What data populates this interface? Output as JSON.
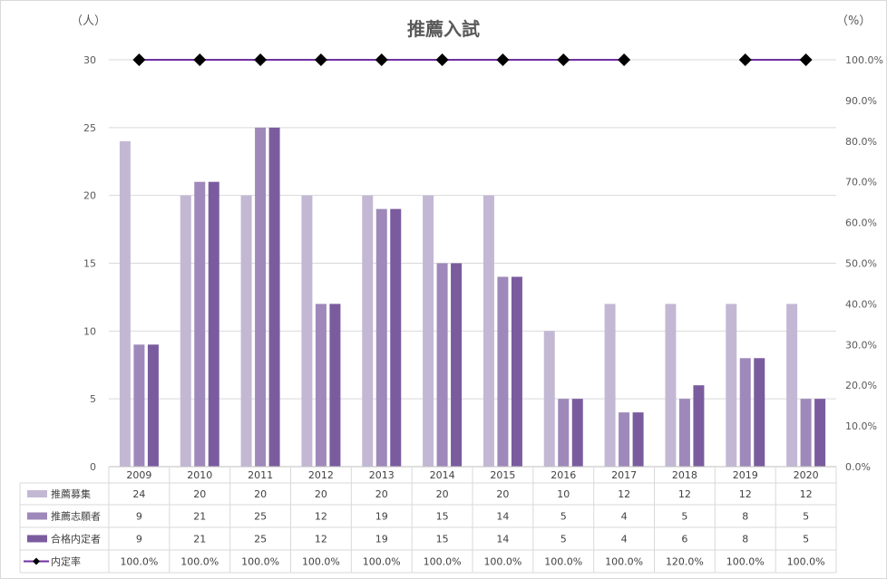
{
  "chart_data": {
    "type": "bar",
    "title": "推薦入試",
    "y_unit_left": "（人）",
    "y_unit_right": "（%）",
    "categories": [
      "2009",
      "2010",
      "2011",
      "2012",
      "2013",
      "2014",
      "2015",
      "2016",
      "2017",
      "2018",
      "2019",
      "2020"
    ],
    "ylim": [
      0,
      30
    ],
    "yticks": [
      "0",
      "5",
      "10",
      "15",
      "20",
      "25",
      "30"
    ],
    "y2lim": [
      0,
      100
    ],
    "y2ticks": [
      "0.0%",
      "10.0%",
      "20.0%",
      "30.0%",
      "40.0%",
      "50.0%",
      "60.0%",
      "70.0%",
      "80.0%",
      "90.0%",
      "100.0%"
    ],
    "grid": true,
    "legend_placement": "data-table",
    "series": [
      {
        "name": "推薦募集",
        "type": "bar",
        "color": "#c3b8d4",
        "values": [
          24,
          20,
          20,
          20,
          20,
          20,
          20,
          10,
          12,
          12,
          12,
          12
        ]
      },
      {
        "name": "推薦志願者",
        "type": "bar",
        "color": "#9e89ba",
        "values": [
          9,
          21,
          25,
          12,
          19,
          15,
          14,
          5,
          4,
          5,
          8,
          5
        ]
      },
      {
        "name": "合格内定者",
        "type": "bar",
        "color": "#7a5c9e",
        "values": [
          9,
          21,
          25,
          12,
          19,
          15,
          14,
          5,
          4,
          6,
          8,
          5
        ]
      },
      {
        "name": "内定率",
        "type": "line",
        "axis": "right",
        "color": "#7030a0",
        "marker_color": "#000000",
        "values": [
          100,
          100,
          100,
          100,
          100,
          100,
          100,
          100,
          100,
          120,
          100,
          100
        ]
      }
    ],
    "table_labels": [
      [
        "24",
        "20",
        "20",
        "20",
        "20",
        "20",
        "20",
        "10",
        "12",
        "12",
        "12",
        "12"
      ],
      [
        "9",
        "21",
        "25",
        "12",
        "19",
        "15",
        "14",
        "5",
        "4",
        "5",
        "8",
        "5"
      ],
      [
        "9",
        "21",
        "25",
        "12",
        "19",
        "15",
        "14",
        "5",
        "4",
        "6",
        "8",
        "5"
      ],
      [
        "100.0%",
        "100.0%",
        "100.0%",
        "100.0%",
        "100.0%",
        "100.0%",
        "100.0%",
        "100.0%",
        "100.0%",
        "120.0%",
        "100.0%",
        "100.0%"
      ]
    ]
  }
}
